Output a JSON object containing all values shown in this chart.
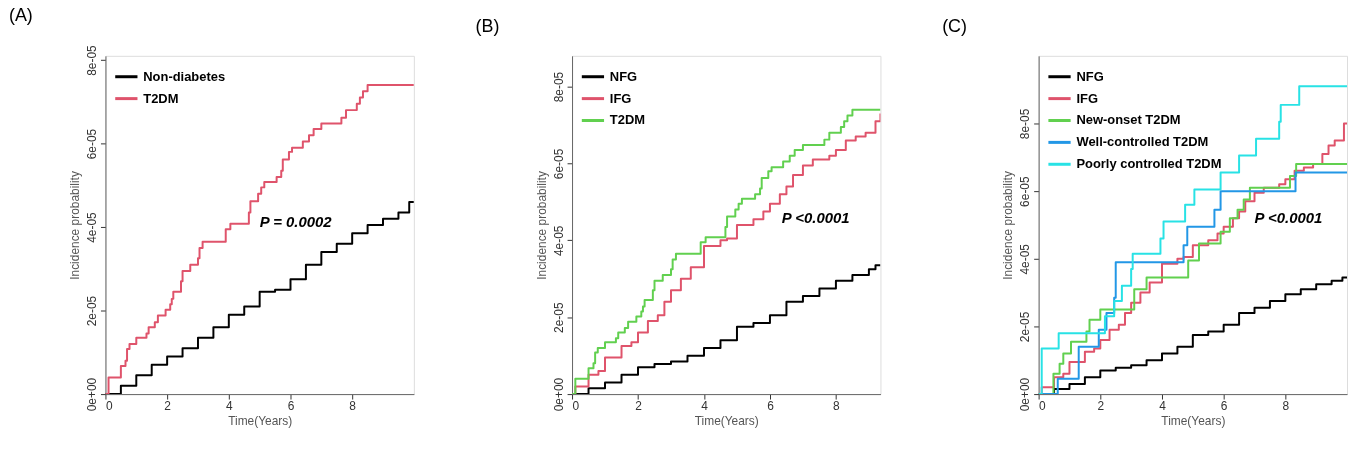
{
  "chart_data": [
    {
      "type": "step",
      "title": "(A)",
      "xlabel": "Time(Years)",
      "ylabel": "Incidence probability",
      "annotations": [
        "P = 0.0002"
      ],
      "xlim": [
        0,
        10
      ],
      "ylim": [
        0,
        8.1e-05
      ],
      "xticks": [
        0,
        2,
        4,
        6,
        8
      ],
      "yticks": [
        {
          "value": 0,
          "label": "0e+00"
        },
        {
          "value": 2e-05,
          "label": "2e-05"
        },
        {
          "value": 4e-05,
          "label": "4e-05"
        },
        {
          "value": 6e-05,
          "label": "6e-05"
        },
        {
          "value": 8e-05,
          "label": "8e-05"
        }
      ],
      "grid": false,
      "legend": "top left",
      "line_style": "solid",
      "series": [
        {
          "name": "Non-diabetes",
          "color": "#000000",
          "x": [
            0,
            0.5,
            1,
            1.5,
            2,
            2.5,
            3,
            3.5,
            4,
            4.5,
            5,
            5.5,
            6,
            6.5,
            7,
            7.5,
            8,
            8.5,
            9,
            9.5,
            9.8,
            9.85,
            10
          ],
          "values": [
            0,
            2e-06,
            4.5e-06,
            7e-06,
            9e-06,
            1.1e-05,
            1.35e-05,
            1.6e-05,
            1.9e-05,
            2.1e-05,
            2.45e-05,
            2.5e-05,
            2.75e-05,
            3.1e-05,
            3.4e-05,
            3.6e-05,
            3.85e-05,
            4.05e-05,
            4.2e-05,
            4.35e-05,
            4.35e-05,
            4.6e-05,
            4.6e-05
          ]
        },
        {
          "name": "T2DM",
          "color": "#df536b",
          "x": [
            0,
            0.1,
            0.5,
            0.65,
            0.7,
            0.78,
            1.0,
            1.33,
            1.4,
            1.6,
            1.7,
            1.95,
            2.1,
            2.15,
            2.2,
            2.45,
            2.5,
            2.75,
            3.0,
            3.05,
            3.15,
            3.9,
            4.05,
            4.65,
            4.7,
            4.95,
            5.05,
            5.15,
            5.55,
            5.7,
            5.75,
            5.95,
            6.05,
            6.4,
            6.6,
            6.75,
            7.0,
            7.65,
            7.8,
            8.15,
            8.25,
            8.35,
            8.5,
            10
          ],
          "values": [
            0,
            4e-06,
            6.7e-06,
            8e-06,
            1.08e-05,
            1.2e-05,
            1.35e-05,
            1.45e-05,
            1.6e-05,
            1.72e-05,
            1.88e-05,
            2.02e-05,
            2.15e-05,
            2.28e-05,
            2.45e-05,
            2.7e-05,
            2.95e-05,
            3.1e-05,
            3.25e-05,
            3.5e-05,
            3.65e-05,
            3.95e-05,
            4.08e-05,
            4.35e-05,
            4.62e-05,
            4.8e-05,
            4.95e-05,
            5.08e-05,
            5.2e-05,
            5.35e-05,
            5.62e-05,
            5.8e-05,
            5.9e-05,
            6.05e-05,
            6.2e-05,
            6.35e-05,
            6.48e-05,
            6.62e-05,
            6.8e-05,
            6.95e-05,
            7.1e-05,
            7.25e-05,
            7.4e-05,
            7.4e-05
          ]
        }
      ]
    },
    {
      "type": "step",
      "title": "(B)",
      "xlabel": "Time(Years)",
      "ylabel": "Incidence probability",
      "annotations": [
        "P <0.0001"
      ],
      "xlim": [
        0,
        9.35
      ],
      "ylim": [
        0,
        8.8e-05
      ],
      "xticks": [
        0,
        2,
        4,
        6,
        8
      ],
      "yticks": [
        {
          "value": 0,
          "label": "0e+00"
        },
        {
          "value": 2e-05,
          "label": "2e-05"
        },
        {
          "value": 4e-05,
          "label": "4e-05"
        },
        {
          "value": 6e-05,
          "label": "6e-05"
        },
        {
          "value": 8e-05,
          "label": "8e-05"
        }
      ],
      "grid": false,
      "legend": "top left",
      "line_style": "solid",
      "series": [
        {
          "name": "NFG",
          "color": "#000000",
          "x": [
            0,
            0.5,
            1,
            1.5,
            2,
            2.5,
            3,
            3.5,
            4,
            4.5,
            5,
            5.5,
            6,
            6.5,
            7,
            7.5,
            8,
            8.5,
            9,
            9.2,
            9.35
          ],
          "values": [
            0,
            1.5e-06,
            3e-06,
            5e-06,
            7e-06,
            7.8e-06,
            8.5e-06,
            1e-05,
            1.2e-05,
            1.4e-05,
            1.75e-05,
            1.85e-05,
            2.05e-05,
            2.4e-05,
            2.55e-05,
            2.75e-05,
            2.95e-05,
            3.1e-05,
            3.25e-05,
            3.35e-05,
            3.35e-05
          ]
        },
        {
          "name": "IFG",
          "color": "#df536b",
          "x": [
            0,
            0.1,
            0.5,
            0.8,
            1.0,
            1.5,
            1.8,
            2,
            2.3,
            2.6,
            2.8,
            3,
            3.3,
            3.6,
            4,
            4.5,
            4.7,
            5,
            5.5,
            5.8,
            6,
            6.3,
            6.5,
            6.7,
            7,
            7.3,
            7.8,
            8,
            8.3,
            8.6,
            8.9,
            9.2,
            9.35
          ],
          "values": [
            0,
            2e-06,
            5e-06,
            6e-06,
            9.5e-06,
            1.25e-05,
            1.35e-05,
            1.6e-05,
            1.9e-05,
            2.05e-05,
            2.4e-05,
            2.7e-05,
            3e-05,
            3.3e-05,
            3.85e-05,
            4e-05,
            4.05e-05,
            4.4e-05,
            4.55e-05,
            4.75e-05,
            4.95e-05,
            5.2e-05,
            5.4e-05,
            5.7e-05,
            5.95e-05,
            6.1e-05,
            6.2e-05,
            6.35e-05,
            6.6e-05,
            6.7e-05,
            6.8e-05,
            7.1e-05,
            7.3e-05
          ]
        },
        {
          "name": "T2DM",
          "color": "#61d04f",
          "x": [
            0,
            0.1,
            0.5,
            0.65,
            0.7,
            0.78,
            1.0,
            1.33,
            1.4,
            1.6,
            1.7,
            1.95,
            2.1,
            2.15,
            2.2,
            2.45,
            2.5,
            2.75,
            3.0,
            3.05,
            3.15,
            3.9,
            4.05,
            4.65,
            4.7,
            4.95,
            5.05,
            5.15,
            5.55,
            5.7,
            5.75,
            5.95,
            6.05,
            6.4,
            6.6,
            6.75,
            7.0,
            7.65,
            7.8,
            8.15,
            8.25,
            8.35,
            8.5,
            9.35
          ],
          "values": [
            0,
            4e-06,
            6.7e-06,
            8e-06,
            1.08e-05,
            1.2e-05,
            1.35e-05,
            1.45e-05,
            1.6e-05,
            1.72e-05,
            1.88e-05,
            2.02e-05,
            2.15e-05,
            2.28e-05,
            2.45e-05,
            2.7e-05,
            2.95e-05,
            3.1e-05,
            3.25e-05,
            3.5e-05,
            3.65e-05,
            3.95e-05,
            4.08e-05,
            4.35e-05,
            4.62e-05,
            4.8e-05,
            4.95e-05,
            5.08e-05,
            5.2e-05,
            5.35e-05,
            5.62e-05,
            5.8e-05,
            5.9e-05,
            6.05e-05,
            6.2e-05,
            6.35e-05,
            6.48e-05,
            6.62e-05,
            6.8e-05,
            6.95e-05,
            7.1e-05,
            7.25e-05,
            7.4e-05,
            7.4e-05
          ]
        }
      ]
    },
    {
      "type": "step",
      "title": "(C)",
      "xlabel": "Time(Years)",
      "ylabel": "Incidence probability",
      "annotations": [
        "P <0.0001"
      ],
      "xlim": [
        0,
        10
      ],
      "ylim": [
        0,
        0.0001
      ],
      "xticks": [
        0,
        2,
        4,
        6,
        8
      ],
      "yticks": [
        {
          "value": 0,
          "label": "0e+00"
        },
        {
          "value": 2e-05,
          "label": "2e-05"
        },
        {
          "value": 4e-05,
          "label": "4e-05"
        },
        {
          "value": 6e-05,
          "label": "6e-05"
        },
        {
          "value": 8e-05,
          "label": "8e-05"
        }
      ],
      "grid": false,
      "legend": "top left",
      "line_style": "solid",
      "series": [
        {
          "name": "NFG",
          "color": "#000000",
          "x": [
            0,
            0.5,
            1,
            1.5,
            2,
            2.5,
            3,
            3.5,
            4,
            4.5,
            5,
            5.5,
            6,
            6.5,
            7,
            7.5,
            8,
            8.5,
            9,
            9.5,
            9.8,
            9.85,
            10
          ],
          "values": [
            0,
            1.5e-06,
            3e-06,
            5e-06,
            7e-06,
            7.8e-06,
            8.5e-06,
            1e-05,
            1.2e-05,
            1.4e-05,
            1.75e-05,
            1.85e-05,
            2.05e-05,
            2.4e-05,
            2.55e-05,
            2.75e-05,
            2.95e-05,
            3.1e-05,
            3.25e-05,
            3.35e-05,
            3.35e-05,
            3.45e-05,
            3.45e-05
          ]
        },
        {
          "name": "IFG",
          "color": "#df536b",
          "x": [
            0,
            0.1,
            0.5,
            0.8,
            1.0,
            1.5,
            1.8,
            2,
            2.3,
            2.6,
            2.8,
            3,
            3.3,
            3.6,
            4,
            4.5,
            4.7,
            5,
            5.5,
            5.8,
            6,
            6.3,
            6.5,
            6.7,
            7,
            7.3,
            7.8,
            8,
            8.3,
            8.6,
            8.9,
            9.2,
            9.4,
            9.6,
            9.9,
            10
          ],
          "values": [
            0,
            2e-06,
            5e-06,
            6e-06,
            9.5e-06,
            1.25e-05,
            1.35e-05,
            1.6e-05,
            1.9e-05,
            2.05e-05,
            2.4e-05,
            2.7e-05,
            3e-05,
            3.3e-05,
            3.85e-05,
            4e-05,
            4.05e-05,
            4.4e-05,
            4.55e-05,
            4.75e-05,
            4.95e-05,
            5.2e-05,
            5.4e-05,
            5.7e-05,
            5.95e-05,
            6.1e-05,
            6.2e-05,
            6.35e-05,
            6.6e-05,
            6.7e-05,
            6.8e-05,
            7.1e-05,
            7.35e-05,
            7.5e-05,
            8e-05,
            8e-05
          ]
        },
        {
          "name": "New-onset T2DM",
          "color": "#61d04f",
          "x": [
            0,
            0.48,
            0.68,
            0.8,
            1.05,
            1.55,
            1.65,
            2.0,
            3.1,
            3.5,
            4.85,
            5.2,
            5.9,
            6.2,
            6.45,
            6.65,
            6.85,
            8.15,
            8.35,
            10
          ],
          "values": [
            0,
            6e-06,
            9e-06,
            1.2e-05,
            1.55e-05,
            1.85e-05,
            2.2e-05,
            2.5e-05,
            3.1e-05,
            3.45e-05,
            3.95e-05,
            4.45e-05,
            4.8e-05,
            5.2e-05,
            5.45e-05,
            5.75e-05,
            6.1e-05,
            6.45e-05,
            6.8e-05,
            6.8e-05
          ]
        },
        {
          "name": "Well-controlled T2DM",
          "color": "#2297e6",
          "x": [
            0,
            0.62,
            1.3,
            1.95,
            2.2,
            2.45,
            2.5,
            4.7,
            4.82,
            5.7,
            5.9,
            8.33,
            10
          ],
          "values": [
            0,
            4.5e-06,
            1.4e-05,
            1.9e-05,
            2.4e-05,
            2.85e-05,
            3.9e-05,
            4.4e-05,
            4.95e-05,
            5.45e-05,
            6e-05,
            6.55e-05,
            6.55e-05
          ]
        },
        {
          "name": "Poorly controlled T2DM",
          "color": "#28e2e5",
          "x": [
            0,
            0.1,
            0.65,
            2.15,
            2.45,
            2.7,
            3.0,
            3.05,
            3.95,
            4.05,
            4.75,
            5.05,
            5.9,
            6.5,
            7.05,
            7.8,
            7.85,
            8.45,
            10
          ],
          "values": [
            0,
            1.35e-05,
            1.8e-05,
            2.3e-05,
            2.75e-05,
            3.2e-05,
            3.7e-05,
            4.15e-05,
            4.6e-05,
            5.1e-05,
            5.6e-05,
            6.05e-05,
            6.55e-05,
            7.05e-05,
            7.55e-05,
            8.05e-05,
            8.55e-05,
            9.1e-05,
            9.1e-05
          ]
        }
      ]
    }
  ]
}
